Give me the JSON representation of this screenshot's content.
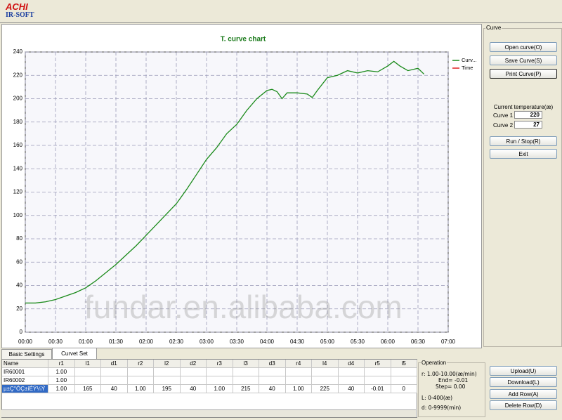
{
  "header": {
    "logo_main": "ACHI",
    "logo_sub": "IR-SOFT"
  },
  "chart_data": {
    "type": "line",
    "title": "T. curve chart",
    "x": [
      0,
      10,
      20,
      30,
      40,
      50,
      60,
      70,
      80,
      90,
      100,
      110,
      120,
      130,
      140,
      150,
      160,
      170,
      180,
      190,
      200,
      210,
      220,
      230,
      240,
      245,
      250,
      255,
      260,
      270,
      280,
      285,
      290,
      300,
      310,
      320,
      330,
      340,
      350,
      360,
      366,
      372,
      380,
      390,
      396
    ],
    "series": [
      {
        "name": "Curv...",
        "color": "#1a8a1a",
        "values": [
          25,
          25,
          26,
          28,
          31,
          34,
          38,
          44,
          51,
          58,
          66,
          74,
          83,
          92,
          101,
          110,
          122,
          135,
          148,
          158,
          170,
          178,
          190,
          200,
          207,
          208,
          206,
          200,
          205,
          205,
          204,
          201,
          207,
          218,
          220,
          224,
          222,
          224,
          223,
          228,
          232,
          228,
          224,
          226,
          221
        ]
      },
      {
        "name": "Time",
        "color": "#e02020",
        "values": [
          null,
          null,
          null,
          null,
          null,
          null,
          null,
          null,
          null,
          null,
          null,
          null,
          null,
          null,
          null,
          null,
          null,
          null,
          null,
          null,
          null,
          null,
          null,
          null,
          null,
          null,
          null,
          null,
          null,
          null,
          null,
          null,
          null,
          null,
          null,
          null,
          null,
          null,
          null,
          null,
          null,
          null,
          null,
          null,
          null
        ]
      }
    ],
    "xlim": [
      0,
      420
    ],
    "xticks": [
      {
        "value": 0,
        "label": "00:00"
      },
      {
        "value": 30,
        "label": "00:30"
      },
      {
        "value": 60,
        "label": "01:00"
      },
      {
        "value": 90,
        "label": "01:30"
      },
      {
        "value": 120,
        "label": "02:00"
      },
      {
        "value": 150,
        "label": "02:30"
      },
      {
        "value": 180,
        "label": "03:00"
      },
      {
        "value": 210,
        "label": "03:30"
      },
      {
        "value": 240,
        "label": "04:00"
      },
      {
        "value": 270,
        "label": "04:30"
      },
      {
        "value": 300,
        "label": "05:00"
      },
      {
        "value": 330,
        "label": "05:30"
      },
      {
        "value": 360,
        "label": "06:00"
      },
      {
        "value": 390,
        "label": "06:30"
      },
      {
        "value": 420,
        "label": "07:00"
      }
    ],
    "ylim": [
      0,
      240
    ],
    "yticks": [
      0,
      20,
      40,
      60,
      80,
      100,
      120,
      140,
      160,
      180,
      200,
      220,
      240
    ],
    "grid": true,
    "legend": "right"
  },
  "curve_panel": {
    "title": "Curve",
    "open": "Open curve(O)",
    "save": "Save Curve(S)",
    "print": "Print Curve(P)",
    "current_label": "Current temperature(æ)",
    "curve1_label": "Curve 1",
    "curve1_value": "220",
    "curve2_label": "Curve 2",
    "curve2_value": "27",
    "run": "Run / Stop(R)",
    "exit": "Exit"
  },
  "tabs": [
    "Basic Settings",
    "Curvet Set"
  ],
  "table": {
    "columns": [
      "Name",
      "r1",
      "l1",
      "d1",
      "r2",
      "l2",
      "d2",
      "r3",
      "l3",
      "d3",
      "r4",
      "l4",
      "d4",
      "r5",
      "l5"
    ],
    "rows": [
      [
        "IR60001",
        "1.00",
        null,
        null,
        null,
        null,
        null,
        null,
        null,
        null,
        null,
        null,
        null,
        null,
        null
      ],
      [
        "IR60002",
        "1.00",
        null,
        null,
        null,
        null,
        null,
        null,
        null,
        null,
        null,
        null,
        null,
        null,
        null
      ],
      [
        "µ±Ç°ÓÇ±íÉÝ¼Ý",
        "1.00",
        "165",
        "40",
        "1.00",
        "195",
        "40",
        "1.00",
        "215",
        "40",
        "1.00",
        "225",
        "40",
        "-0.01",
        "0"
      ]
    ]
  },
  "operation": {
    "title": "Operation",
    "lines": [
      "r: 1.00-10.00(æ/min)",
      "End= -0.01",
      "Step= 0.00",
      "L: 0-400(æ)",
      "d: 0-9999(min)"
    ]
  },
  "buttons": [
    "Upload(U)",
    "Download(L)",
    "Add Row(A)",
    "Delete Row(D)"
  ],
  "watermark": "fundar.en.alibaba.com"
}
